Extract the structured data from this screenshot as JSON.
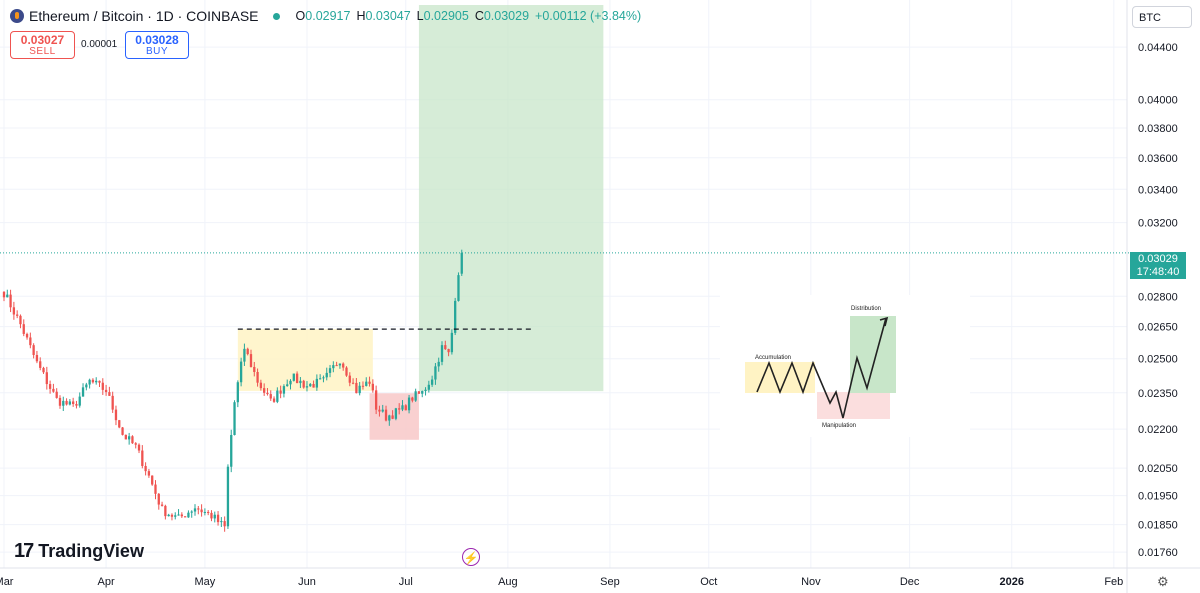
{
  "header": {
    "title": "Ethereum / Bitcoin · 1D · COINBASE",
    "open_label": "O",
    "open": "0.02917",
    "high_label": "H",
    "high": "0.03047",
    "low_label": "L",
    "low": "0.02905",
    "close_label": "C",
    "close": "0.03029",
    "change": "+0.00112 (+3.84%)"
  },
  "trade": {
    "sell_price": "0.03027",
    "sell_label": "SELL",
    "spread": "0.00001",
    "buy_price": "0.03028",
    "buy_label": "BUY"
  },
  "currency": "BTC",
  "last_price": {
    "price": "0.03029",
    "countdown": "17:48:40"
  },
  "branding": {
    "logo_mark": "17",
    "name": "TradingView"
  },
  "colors": {
    "up": "#26a69a",
    "down": "#ef5350",
    "long_zone": "#c8e6c9",
    "range_zone": "#fff3c4",
    "manip_zone": "#f8c8c8",
    "grid": "#f0f3fa"
  },
  "chart_data": {
    "type": "candlestick",
    "title": "Ethereum / Bitcoin · 1D · COINBASE",
    "y_scale": "log",
    "ylim": [
      0.0171,
      0.0475
    ],
    "y_ticks": [
      "0.04400",
      "0.04000",
      "0.03800",
      "0.03600",
      "0.03400",
      "0.03200",
      "0.02800",
      "0.02650",
      "0.02500",
      "0.02350",
      "0.02200",
      "0.02050",
      "0.01950",
      "0.01850",
      "0.01760"
    ],
    "x_ticks": [
      "Mar",
      "Apr",
      "May",
      "Jun",
      "Jul",
      "Aug",
      "Sep",
      "Oct",
      "Nov",
      "Dec",
      "2026",
      "Feb"
    ],
    "x_range": [
      "2025-03-01",
      "2026-02-05"
    ],
    "grid": true,
    "anchors": [
      [
        "2025-03-01",
        0.0282
      ],
      [
        "2025-03-06",
        0.0266
      ],
      [
        "2025-03-11",
        0.0248
      ],
      [
        "2025-03-17",
        0.0232
      ],
      [
        "2025-03-22",
        0.0229
      ],
      [
        "2025-03-27",
        0.024
      ],
      [
        "2025-04-01",
        0.0236
      ],
      [
        "2025-04-06",
        0.0218
      ],
      [
        "2025-04-10",
        0.0213
      ],
      [
        "2025-04-14",
        0.0202
      ],
      [
        "2025-04-18",
        0.019
      ],
      [
        "2025-04-23",
        0.0187
      ],
      [
        "2025-04-28",
        0.0191
      ],
      [
        "2025-05-03",
        0.0188
      ],
      [
        "2025-05-07",
        0.0184
      ],
      [
        "2025-05-08",
        0.0205
      ],
      [
        "2025-05-10",
        0.0231
      ],
      [
        "2025-05-13",
        0.0255
      ],
      [
        "2025-05-17",
        0.024
      ],
      [
        "2025-05-21",
        0.0231
      ],
      [
        "2025-05-27",
        0.0242
      ],
      [
        "2025-06-01",
        0.0238
      ],
      [
        "2025-06-06",
        0.024
      ],
      [
        "2025-06-11",
        0.025
      ],
      [
        "2025-06-16",
        0.0236
      ],
      [
        "2025-06-20",
        0.024
      ],
      [
        "2025-06-22",
        0.0229
      ],
      [
        "2025-06-25",
        0.0225
      ],
      [
        "2025-06-30",
        0.0228
      ],
      [
        "2025-07-03",
        0.0233
      ],
      [
        "2025-07-06",
        0.0235
      ],
      [
        "2025-07-09",
        0.0242
      ],
      [
        "2025-07-12",
        0.0255
      ],
      [
        "2025-07-14",
        0.0252
      ],
      [
        "2025-07-15",
        0.0262
      ],
      [
        "2025-07-16",
        0.028
      ],
      [
        "2025-07-17",
        0.0293
      ],
      [
        "2025-07-18",
        0.0303
      ]
    ],
    "open_last": 0.02917,
    "high_last": 0.03047,
    "low_last": 0.02905,
    "close_last": 0.03029,
    "resistance_level": 0.02638,
    "zones": [
      {
        "kind": "accumulation_range",
        "from": "2025-05-11",
        "to": "2025-06-21",
        "top": 0.02638,
        "bottom": 0.02358
      },
      {
        "kind": "manipulation",
        "from": "2025-06-20",
        "to": "2025-07-05",
        "top": 0.02348,
        "bottom": 0.02158
      },
      {
        "kind": "long_target",
        "from": "2025-07-05",
        "to": "2025-08-30",
        "top": 0.0475,
        "bottom": 0.02357
      }
    ],
    "annotations": [
      "Accumulation",
      "Manipulation",
      "Distribution"
    ]
  }
}
